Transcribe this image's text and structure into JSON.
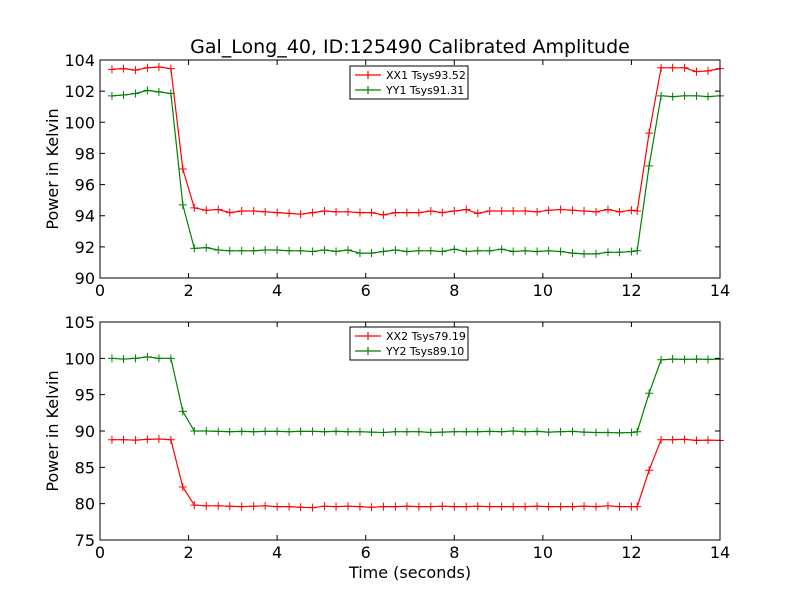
{
  "title": "Gal_Long_40, ID:125490 Calibrated Amplitude",
  "chart_data": [
    {
      "type": "line",
      "ylabel": "Power in Kelvin",
      "xlabel": "",
      "xlim": [
        0,
        14
      ],
      "ylim": [
        90,
        104
      ],
      "xticks": [
        0,
        2,
        4,
        6,
        8,
        10,
        12,
        14
      ],
      "yticks": [
        90,
        92,
        94,
        96,
        98,
        100,
        102,
        104
      ],
      "legend_position": "top-center",
      "x": [
        0.27,
        0.53,
        0.8,
        1.07,
        1.33,
        1.6,
        1.87,
        2.13,
        2.4,
        2.67,
        2.93,
        3.2,
        3.47,
        3.73,
        4.0,
        4.27,
        4.53,
        4.8,
        5.07,
        5.33,
        5.6,
        5.87,
        6.13,
        6.4,
        6.67,
        6.93,
        7.2,
        7.47,
        7.73,
        8.0,
        8.27,
        8.53,
        8.8,
        9.07,
        9.33,
        9.6,
        9.87,
        10.13,
        10.4,
        10.67,
        10.93,
        11.2,
        11.47,
        11.73,
        12.0,
        12.13,
        12.4,
        12.67,
        12.93,
        13.2,
        13.47,
        13.73,
        14.0
      ],
      "series": [
        {
          "name": "XX1 Tsys93.52",
          "color": "#ff0000",
          "values": [
            103.4,
            103.45,
            103.35,
            103.5,
            103.55,
            103.45,
            97.0,
            94.5,
            94.35,
            94.4,
            94.2,
            94.3,
            94.3,
            94.25,
            94.2,
            94.15,
            94.1,
            94.2,
            94.3,
            94.25,
            94.25,
            94.2,
            94.2,
            94.05,
            94.2,
            94.2,
            94.2,
            94.3,
            94.2,
            94.3,
            94.4,
            94.15,
            94.3,
            94.3,
            94.3,
            94.3,
            94.25,
            94.35,
            94.4,
            94.35,
            94.3,
            94.25,
            94.4,
            94.25,
            94.35,
            94.3,
            99.3,
            103.5,
            103.5,
            103.5,
            103.25,
            103.3,
            103.45
          ]
        },
        {
          "name": "YY1 Tsys91.31",
          "color": "#008000",
          "values": [
            101.7,
            101.75,
            101.85,
            102.05,
            101.95,
            101.85,
            94.7,
            91.9,
            91.95,
            91.8,
            91.75,
            91.75,
            91.75,
            91.8,
            91.8,
            91.75,
            91.75,
            91.7,
            91.8,
            91.7,
            91.8,
            91.6,
            91.6,
            91.7,
            91.8,
            91.7,
            91.75,
            91.75,
            91.7,
            91.85,
            91.7,
            91.75,
            91.75,
            91.85,
            91.7,
            91.75,
            91.7,
            91.75,
            91.7,
            91.6,
            91.55,
            91.55,
            91.65,
            91.65,
            91.7,
            91.75,
            97.2,
            101.7,
            101.65,
            101.7,
            101.7,
            101.65,
            101.7
          ]
        }
      ]
    },
    {
      "type": "line",
      "ylabel": "Power in Kelvin",
      "xlabel": "Time (seconds)",
      "xlim": [
        0,
        14
      ],
      "ylim": [
        75,
        105
      ],
      "xticks": [
        0,
        2,
        4,
        6,
        8,
        10,
        12,
        14
      ],
      "yticks": [
        75,
        80,
        85,
        90,
        95,
        100,
        105
      ],
      "legend_position": "top-center",
      "x": [
        0.27,
        0.53,
        0.8,
        1.07,
        1.33,
        1.6,
        1.87,
        2.13,
        2.4,
        2.67,
        2.93,
        3.2,
        3.47,
        3.73,
        4.0,
        4.27,
        4.53,
        4.8,
        5.07,
        5.33,
        5.6,
        5.87,
        6.13,
        6.4,
        6.67,
        6.93,
        7.2,
        7.47,
        7.73,
        8.0,
        8.27,
        8.53,
        8.8,
        9.07,
        9.33,
        9.6,
        9.87,
        10.13,
        10.4,
        10.67,
        10.93,
        11.2,
        11.47,
        11.73,
        12.0,
        12.13,
        12.4,
        12.67,
        12.93,
        13.2,
        13.47,
        13.73,
        14.0
      ],
      "series": [
        {
          "name": "XX2 Tsys79.19",
          "color": "#ff0000",
          "values": [
            88.8,
            88.8,
            88.75,
            88.85,
            88.9,
            88.8,
            82.3,
            79.8,
            79.7,
            79.7,
            79.65,
            79.6,
            79.65,
            79.7,
            79.6,
            79.6,
            79.5,
            79.45,
            79.65,
            79.6,
            79.65,
            79.6,
            79.5,
            79.6,
            79.6,
            79.65,
            79.6,
            79.6,
            79.65,
            79.6,
            79.6,
            79.65,
            79.6,
            79.6,
            79.6,
            79.6,
            79.65,
            79.6,
            79.6,
            79.6,
            79.65,
            79.6,
            79.7,
            79.6,
            79.6,
            79.6,
            84.6,
            88.8,
            88.8,
            88.85,
            88.7,
            88.75,
            88.7
          ]
        },
        {
          "name": "YY2 Tsys89.10",
          "color": "#008000",
          "values": [
            100.0,
            99.9,
            100.0,
            100.2,
            100.0,
            100.0,
            92.7,
            90.0,
            90.0,
            89.95,
            89.9,
            89.95,
            89.9,
            89.95,
            89.95,
            89.9,
            89.95,
            89.95,
            89.9,
            89.95,
            89.9,
            89.9,
            89.85,
            89.8,
            89.9,
            89.9,
            89.9,
            89.8,
            89.85,
            89.9,
            89.9,
            89.9,
            89.95,
            89.9,
            90.0,
            89.9,
            89.95,
            89.85,
            89.9,
            89.95,
            89.85,
            89.8,
            89.8,
            89.75,
            89.8,
            89.9,
            95.2,
            99.8,
            99.9,
            99.85,
            99.9,
            99.85,
            99.9
          ]
        }
      ]
    }
  ]
}
